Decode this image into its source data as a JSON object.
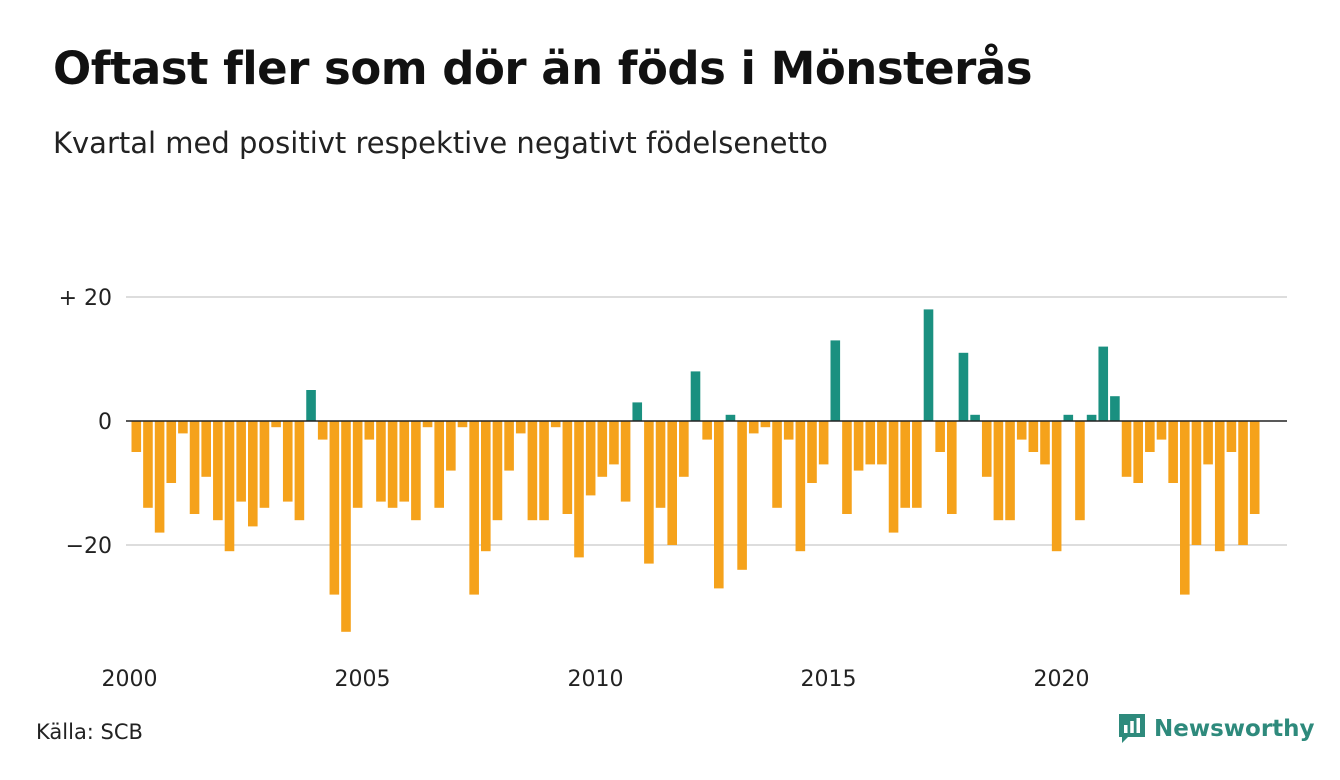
{
  "title": "Oftast fler som dör än föds i Mönsterås",
  "subtitle": "Kvartal med positivt respektive negativt födelsenetto",
  "source": "Källa: SCB",
  "brand": {
    "name": "Newsworthy",
    "icon": "bar-chart-speech-bubble-icon"
  },
  "colors": {
    "positive": "#1a9080",
    "negative": "#f5a21b",
    "grid": "#dddddd",
    "zero_line": "#222222",
    "brand": "#2e8a7c"
  },
  "chart_data": {
    "type": "bar",
    "x_start": "2000 Q1",
    "x_tick_labels": [
      "2000",
      "2005",
      "2010",
      "2015",
      "2020"
    ],
    "y_tick_labels": [
      "+ 20",
      "0",
      "−20"
    ],
    "y_ticks": [
      20,
      0,
      -20
    ],
    "ylim": [
      -35,
      21
    ],
    "grid": true,
    "series": [
      {
        "values": [
          -5,
          -14,
          -18,
          -10,
          -2,
          -15,
          -9,
          -16,
          -21,
          -13,
          -17,
          -14,
          -1,
          -13,
          -16,
          5,
          -3,
          -28,
          -34,
          -14,
          -3,
          -13,
          -14,
          -13,
          -16,
          -1,
          -14,
          -8,
          -1,
          -28,
          -21,
          -16,
          -8,
          -2,
          -16,
          -16,
          -1,
          -15,
          -22,
          -12,
          -9,
          -7,
          -13,
          3,
          -23,
          -14,
          -20,
          -9,
          8,
          -3,
          -27,
          1,
          -24,
          -2,
          -1,
          -14,
          -3,
          -21,
          -10,
          -7,
          13,
          -15,
          -8,
          -7,
          -7,
          -18,
          -14,
          -14,
          18,
          -5,
          -15,
          11,
          1,
          -9,
          -16,
          -16,
          -3,
          -5,
          -7,
          -21,
          1,
          -16,
          1,
          12,
          4,
          -9,
          -10,
          -5,
          -3,
          -10,
          -28,
          -20,
          -7,
          -21,
          -5,
          -20,
          -15
        ]
      }
    ]
  }
}
